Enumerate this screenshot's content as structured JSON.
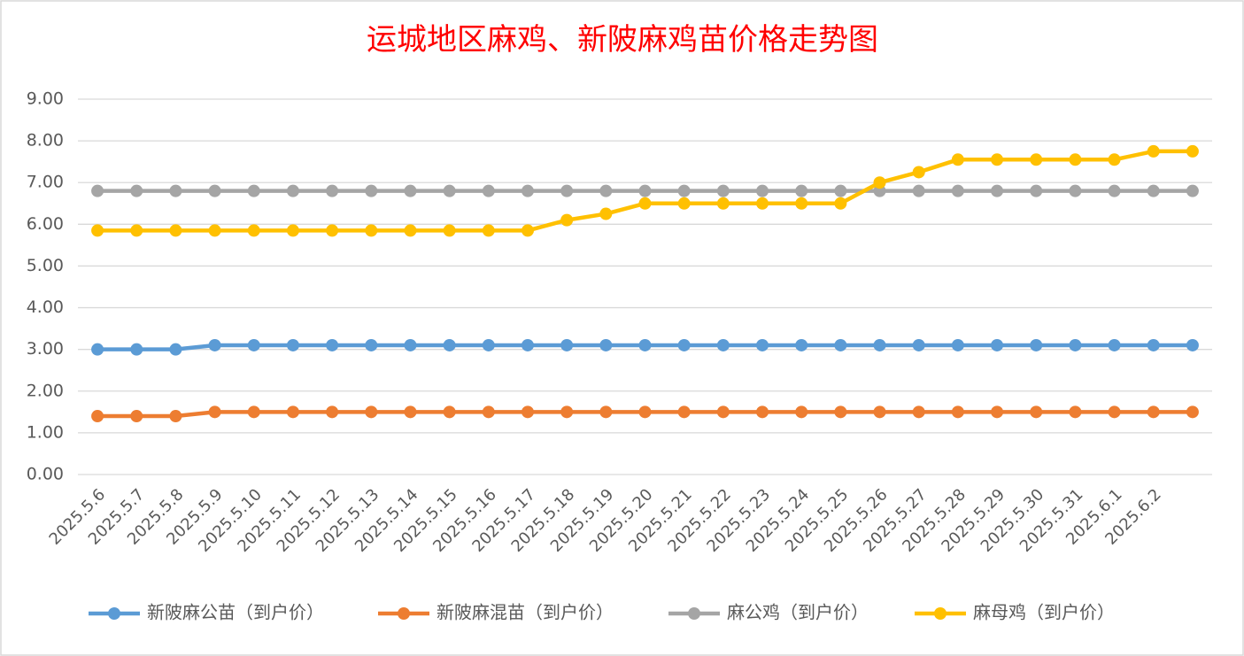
{
  "chart_data": {
    "type": "line",
    "title": "运城地区麻鸡、新陂麻鸡苗价格走势图",
    "categories": [
      "2025.5.6",
      "2025.5.7",
      "2025.5.8",
      "2025.5.9",
      "2025.5.10",
      "2025.5.11",
      "2025.5.12",
      "2025.5.13",
      "2025.5.14",
      "2025.5.15",
      "2025.5.16",
      "2025.5.17",
      "2025.5.18",
      "2025.5.19",
      "2025.5.20",
      "2025.5.21",
      "2025.5.22",
      "2025.5.23",
      "2025.5.24",
      "2025.5.25",
      "2025.5.26",
      "2025.5.27",
      "2025.5.28",
      "2025.5.29",
      "2025.5.30",
      "2025.5.31",
      "2025.6.1",
      "2025.6.2",
      null
    ],
    "series": [
      {
        "name": "新陂麻公苗（到户价）",
        "color": "#5b9bd5",
        "values": [
          3.0,
          3.0,
          3.0,
          3.1,
          3.1,
          3.1,
          3.1,
          3.1,
          3.1,
          3.1,
          3.1,
          3.1,
          3.1,
          3.1,
          3.1,
          3.1,
          3.1,
          3.1,
          3.1,
          3.1,
          3.1,
          3.1,
          3.1,
          3.1,
          3.1,
          3.1,
          3.1,
          3.1,
          3.1
        ]
      },
      {
        "name": "新陂麻混苗（到户价）",
        "color": "#ed7d31",
        "values": [
          1.4,
          1.4,
          1.4,
          1.5,
          1.5,
          1.5,
          1.5,
          1.5,
          1.5,
          1.5,
          1.5,
          1.5,
          1.5,
          1.5,
          1.5,
          1.5,
          1.5,
          1.5,
          1.5,
          1.5,
          1.5,
          1.5,
          1.5,
          1.5,
          1.5,
          1.5,
          1.5,
          1.5,
          1.5
        ]
      },
      {
        "name": "麻公鸡（到户价）",
        "color": "#a5a5a5",
        "values": [
          6.8,
          6.8,
          6.8,
          6.8,
          6.8,
          6.8,
          6.8,
          6.8,
          6.8,
          6.8,
          6.8,
          6.8,
          6.8,
          6.8,
          6.8,
          6.8,
          6.8,
          6.8,
          6.8,
          6.8,
          6.8,
          6.8,
          6.8,
          6.8,
          6.8,
          6.8,
          6.8,
          6.8,
          6.8
        ]
      },
      {
        "name": "麻母鸡（到户价）",
        "color": "#ffc000",
        "values": [
          5.85,
          5.85,
          5.85,
          5.85,
          5.85,
          5.85,
          5.85,
          5.85,
          5.85,
          5.85,
          5.85,
          5.85,
          6.1,
          6.25,
          6.5,
          6.5,
          6.5,
          6.5,
          6.5,
          6.5,
          7.0,
          7.25,
          7.55,
          7.55,
          7.55,
          7.55,
          7.55,
          7.75,
          7.75
        ]
      }
    ],
    "ylim": [
      0,
      9
    ],
    "yticks": [
      {
        "value": 0,
        "label": "0.00"
      },
      {
        "value": 1,
        "label": "1.00"
      },
      {
        "value": 2,
        "label": "2.00"
      },
      {
        "value": 3,
        "label": "3.00"
      },
      {
        "value": 4,
        "label": "4.00"
      },
      {
        "value": 5,
        "label": "5.00"
      },
      {
        "value": 6,
        "label": "6.00"
      },
      {
        "value": 7,
        "label": "7.00"
      },
      {
        "value": 8,
        "label": "8.00"
      },
      {
        "value": 9,
        "label": "9.00"
      }
    ],
    "grid": true,
    "legend": "bottom"
  }
}
